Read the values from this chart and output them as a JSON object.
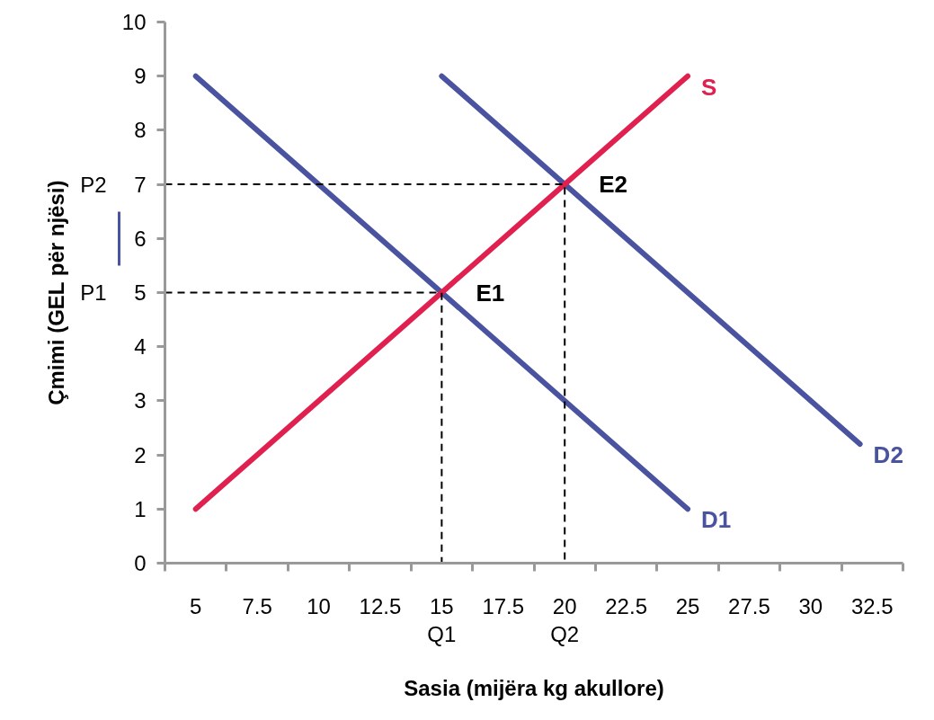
{
  "chart_data": {
    "type": "line",
    "xlabel": "Sasia (mijëra kg akullore)",
    "ylabel": "Çmimi (GEL për njësi)",
    "xlim": [
      3.75,
      33.75
    ],
    "xticks": [
      {
        "value": 3.75,
        "label": null
      },
      5,
      {
        "value": 6.25,
        "label": null
      },
      7.5,
      {
        "value": 8.75,
        "label": null
      },
      10,
      {
        "value": 11.25,
        "label": null
      },
      12.5,
      {
        "value": 13.75,
        "label": null
      },
      15,
      {
        "value": 16.25,
        "label": null
      },
      17.5,
      {
        "value": 18.75,
        "label": null
      },
      20,
      {
        "value": 21.25,
        "label": null
      },
      22.5,
      {
        "value": 23.75,
        "label": null
      },
      25,
      {
        "value": 26.25,
        "label": null
      },
      27.5,
      {
        "value": 28.75,
        "label": null
      },
      30,
      {
        "value": 31.25,
        "label": null
      },
      32.5,
      {
        "value": 33.75,
        "label": null
      }
    ],
    "ylim": [
      0,
      10
    ],
    "yticks": [
      0,
      1,
      2,
      3,
      4,
      5,
      6,
      7,
      8,
      9,
      10
    ],
    "grid": false,
    "marker": "none",
    "series": [
      {
        "name": "D1",
        "color": "#4a53a0",
        "x": [
          5,
          15,
          25
        ],
        "values": [
          9,
          5,
          1
        ]
      },
      {
        "name": "D2",
        "color": "#4a53a0",
        "x": [
          15,
          20,
          32
        ],
        "values": [
          9,
          7,
          2.2
        ]
      },
      {
        "name": "S",
        "color": "#e0204f",
        "x": [
          5,
          15,
          20,
          25
        ],
        "values": [
          1,
          5,
          7,
          9
        ]
      },
      {
        "color": "#000000",
        "line_style": "dashed",
        "x": [
          3.75,
          15,
          15
        ],
        "values": [
          5,
          5,
          0
        ]
      },
      {
        "color": "#000000",
        "line_style": "dashed",
        "x": [
          3.75,
          20,
          20
        ],
        "values": [
          7,
          7,
          0
        ]
      }
    ],
    "annotations": [
      {
        "text": "E1",
        "x": 15,
        "y": 5
      },
      {
        "text": "E2",
        "x": 20,
        "y": 7
      },
      {
        "text": "P1",
        "x": 3.75,
        "y": 5
      },
      {
        "text": "P2",
        "x": 3.75,
        "y": 7
      },
      {
        "text": "Q1",
        "x": 15,
        "y": 0
      },
      {
        "text": "Q2",
        "x": 20,
        "y": 0
      }
    ]
  }
}
